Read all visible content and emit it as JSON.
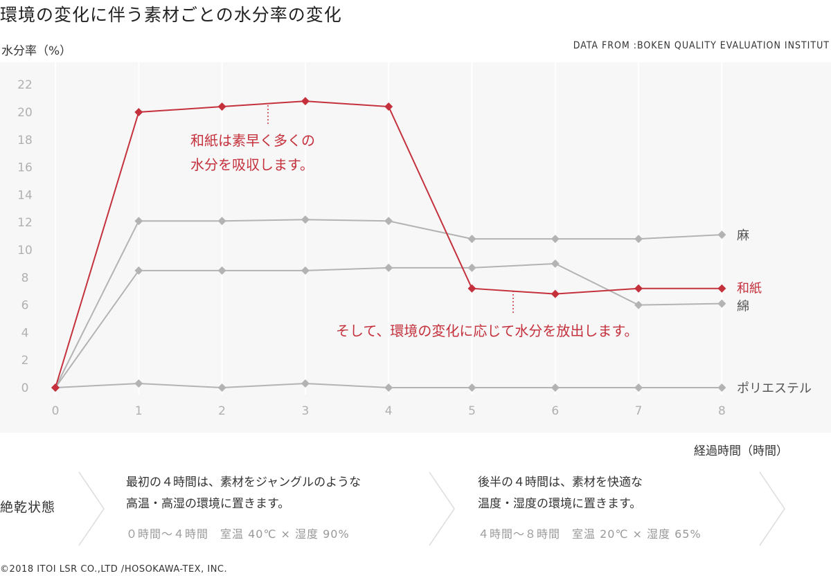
{
  "title": "環境の変化に伴う素材ごとの水分率の変化",
  "source": "DATA FROM :BOKEN QUALITY EVALUATION INSTITUT",
  "chart_data": {
    "type": "line",
    "title": "環境の変化に伴う素材ごとの水分率の変化",
    "ylabel": "水分率（%）",
    "xlabel": "経過時間（時間）",
    "x": [
      0,
      1,
      2,
      3,
      4,
      5,
      6,
      7,
      8
    ],
    "x_ticks": [
      "0",
      "1",
      "2",
      "3",
      "4",
      "5",
      "6",
      "7",
      "8"
    ],
    "y_ticks": [
      "0",
      "2",
      "4",
      "6",
      "8",
      "10",
      "12",
      "14",
      "16",
      "18",
      "20",
      "22"
    ],
    "ylim": [
      0,
      22
    ],
    "grid": "vertical",
    "legend": "right (series names at line ends)",
    "series": [
      {
        "name": "麻",
        "color": "#b3b3b3",
        "values": [
          0,
          12.1,
          12.1,
          12.2,
          12.1,
          10.8,
          10.8,
          10.8,
          11.1
        ]
      },
      {
        "name": "和紙",
        "color": "#c4303b",
        "values": [
          0,
          20.0,
          20.4,
          20.8,
          20.4,
          7.2,
          6.8,
          7.2,
          7.2
        ]
      },
      {
        "name": "綿",
        "color": "#b3b3b3",
        "values": [
          0,
          8.5,
          8.5,
          8.5,
          8.7,
          8.7,
          9.0,
          6.0,
          6.1
        ]
      },
      {
        "name": "ポリエステル",
        "color": "#b3b3b3",
        "values": [
          0,
          0.3,
          0.0,
          0.3,
          0.0,
          0.0,
          0.0,
          0.0,
          0.0
        ]
      }
    ],
    "annotations": [
      {
        "lines": [
          "和紙は素早く多くの",
          "水分を吸収します。"
        ],
        "color": "#c4303b"
      },
      {
        "lines": [
          "そして、環境の変化に応じて水分を放出します。"
        ],
        "color": "#c4303b"
      }
    ]
  },
  "conditions": {
    "label": "絶乾状態",
    "phase1": {
      "line1": "最初の４時間は、素材をジャングルのような",
      "line2": "高温・高湿の環境に置きます。",
      "detail": "０時間〜４時間　室温 40℃ × 湿度 90%"
    },
    "phase2": {
      "line1": "後半の４時間は、素材を快適な",
      "line2": "温度・湿度の環境に置きます。",
      "detail": "４時間〜８時間　室温 20℃ × 湿度 65%"
    }
  },
  "copyright": "©2018 ITOI LSR CO.,LTD /HOSOKAWA-TEX, INC."
}
